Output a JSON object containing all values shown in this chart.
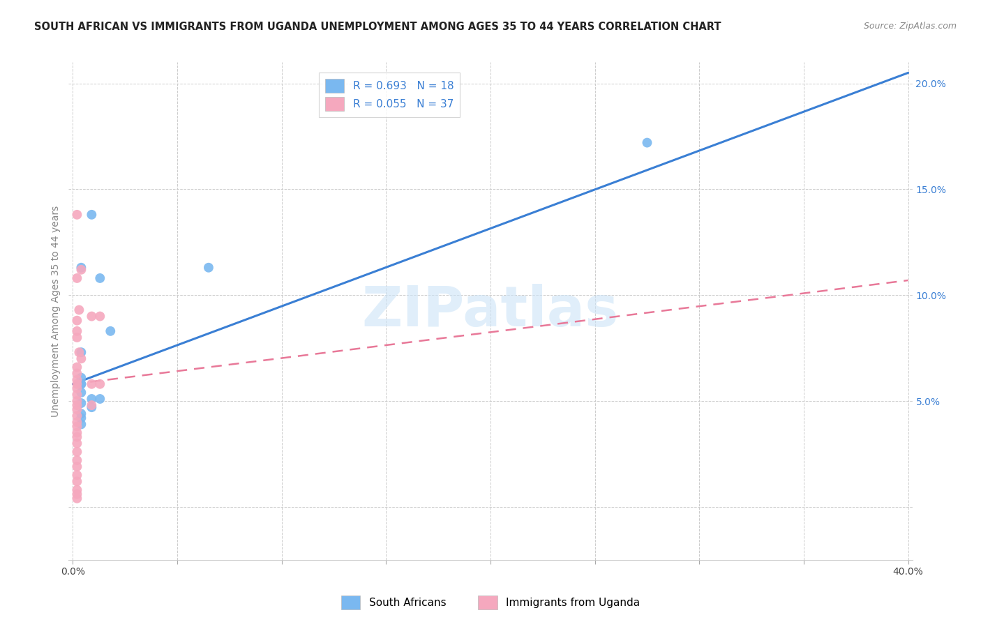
{
  "title": "SOUTH AFRICAN VS IMMIGRANTS FROM UGANDA UNEMPLOYMENT AMONG AGES 35 TO 44 YEARS CORRELATION CHART",
  "source": "Source: ZipAtlas.com",
  "ylabel": "Unemployment Among Ages 35 to 44 years",
  "xlim": [
    -0.002,
    0.402
  ],
  "ylim": [
    -0.025,
    0.21
  ],
  "xticks": [
    0.0,
    0.05,
    0.1,
    0.15,
    0.2,
    0.25,
    0.3,
    0.35,
    0.4
  ],
  "yticks": [
    0.0,
    0.05,
    0.1,
    0.15,
    0.2
  ],
  "blue_scatter_x": [
    0.004,
    0.009,
    0.004,
    0.013,
    0.018,
    0.004,
    0.004,
    0.004,
    0.009,
    0.013,
    0.009,
    0.004,
    0.004,
    0.004,
    0.065,
    0.275,
    0.004,
    0.004
  ],
  "blue_scatter_y": [
    0.058,
    0.138,
    0.113,
    0.108,
    0.083,
    0.073,
    0.061,
    0.054,
    0.051,
    0.051,
    0.047,
    0.044,
    0.042,
    0.039,
    0.113,
    0.172,
    0.058,
    0.049
  ],
  "pink_scatter_x": [
    0.002,
    0.004,
    0.002,
    0.003,
    0.002,
    0.002,
    0.002,
    0.003,
    0.004,
    0.002,
    0.002,
    0.002,
    0.002,
    0.002,
    0.002,
    0.002,
    0.002,
    0.009,
    0.002,
    0.002,
    0.002,
    0.002,
    0.002,
    0.002,
    0.002,
    0.002,
    0.002,
    0.002,
    0.002,
    0.002,
    0.009,
    0.013,
    0.009,
    0.013,
    0.002,
    0.002,
    0.002
  ],
  "pink_scatter_y": [
    0.138,
    0.112,
    0.108,
    0.093,
    0.088,
    0.083,
    0.08,
    0.073,
    0.07,
    0.066,
    0.063,
    0.06,
    0.058,
    0.056,
    0.053,
    0.05,
    0.048,
    0.048,
    0.046,
    0.043,
    0.04,
    0.038,
    0.035,
    0.033,
    0.03,
    0.026,
    0.022,
    0.019,
    0.015,
    0.012,
    0.058,
    0.058,
    0.09,
    0.09,
    0.006,
    0.004,
    0.008
  ],
  "blue_line_x": [
    0.0,
    0.4
  ],
  "blue_line_y": [
    0.058,
    0.205
  ],
  "pink_line_x": [
    0.0,
    0.4
  ],
  "pink_line_y": [
    0.058,
    0.107
  ],
  "R_blue": "0.693",
  "N_blue": "18",
  "R_pink": "0.055",
  "N_pink": "37",
  "blue_scatter_color": "#7ab8f0",
  "pink_scatter_color": "#f5a8be",
  "blue_line_color": "#3a7fd4",
  "pink_line_color": "#e87898",
  "legend_label_blue": "South Africans",
  "legend_label_pink": "Immigrants from Uganda",
  "watermark_text": "ZIPatlas",
  "title_fontsize": 10.5,
  "axis_label_fontsize": 10,
  "tick_fontsize": 10,
  "legend_fontsize": 11,
  "source_fontsize": 9
}
